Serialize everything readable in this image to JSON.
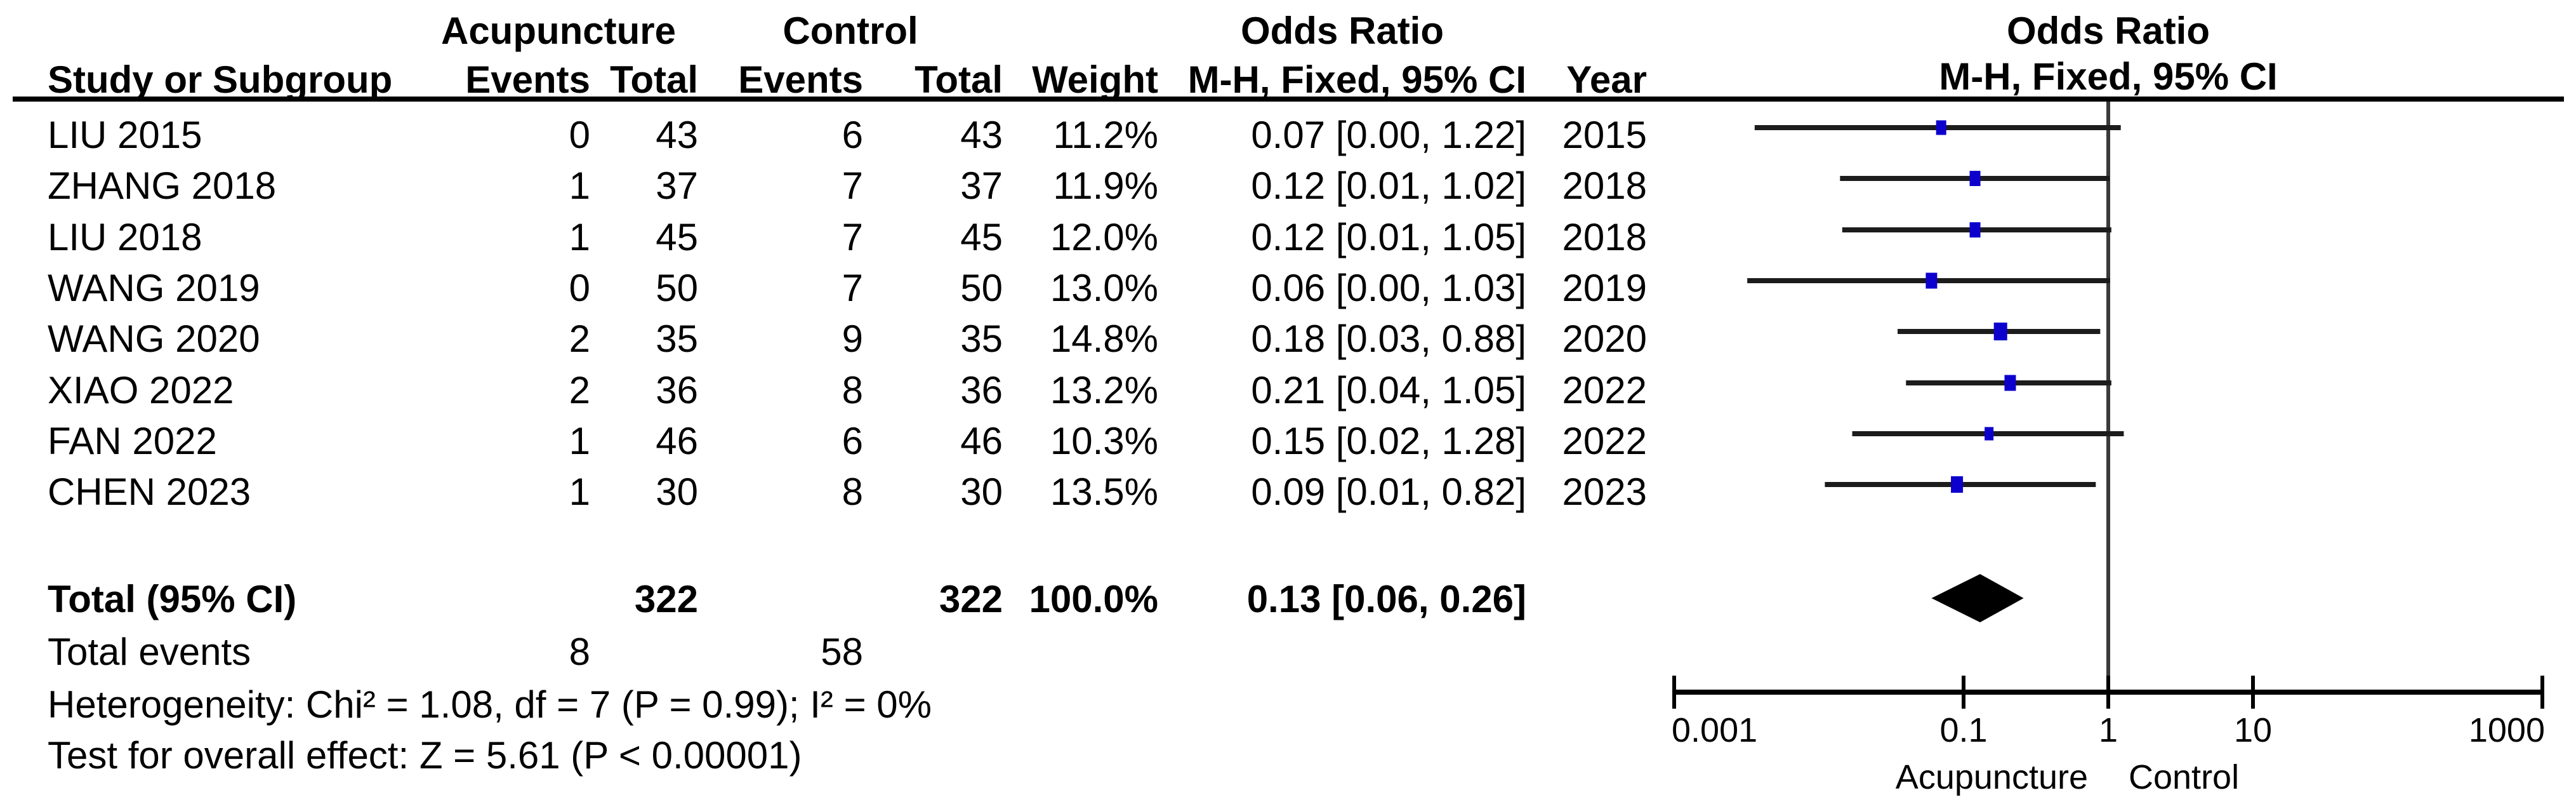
{
  "header": {
    "col_study": "Study or Subgroup",
    "group_experimental": "Acupuncture",
    "group_control": "Control",
    "group_odds_ratio_text": "Odds Ratio",
    "group_odds_ratio_plot": "Odds Ratio",
    "col_events": "Events",
    "col_total": "Total",
    "col_events2": "Events",
    "col_total2": "Total",
    "col_weight": "Weight",
    "col_mh": "M-H, Fixed, 95% CI",
    "col_year": "Year",
    "plot_subtitle": "M-H, Fixed, 95% CI"
  },
  "chart_data": {
    "type": "scatter",
    "subtype": "forest-plot-odds-ratio",
    "effect_measure": "Odds Ratio, M-H, Fixed, 95% CI",
    "x_axis": {
      "scale": "log10",
      "range": [
        0.001,
        1000
      ],
      "ticks": [
        0.001,
        0.1,
        1,
        10,
        1000
      ],
      "tick_labels": [
        "0.001",
        "0.1",
        "1",
        "10",
        "1000"
      ],
      "null_line": 1
    },
    "favours": {
      "left": "Acupuncture",
      "right": "Control"
    },
    "studies": [
      {
        "name": "LIU 2015",
        "acu_events": "0",
        "acu_total": "43",
        "ctrl_events": "6",
        "ctrl_total": "43",
        "weight": "11.2%",
        "weight_value": 11.2,
        "ci_text": "0.07 [0.00, 1.22]",
        "year": "2015",
        "or": 0.07,
        "ci_low": 0.0036,
        "ci_high": 1.22
      },
      {
        "name": "ZHANG 2018",
        "acu_events": "1",
        "acu_total": "37",
        "ctrl_events": "7",
        "ctrl_total": "37",
        "weight": "11.9%",
        "weight_value": 11.9,
        "ci_text": "0.12 [0.01, 1.02]",
        "year": "2018",
        "or": 0.12,
        "ci_low": 0.014,
        "ci_high": 1.02
      },
      {
        "name": "LIU 2018",
        "acu_events": "1",
        "acu_total": "45",
        "ctrl_events": "7",
        "ctrl_total": "45",
        "weight": "12.0%",
        "weight_value": 12.0,
        "ci_text": "0.12 [0.01, 1.05]",
        "year": "2018",
        "or": 0.12,
        "ci_low": 0.0145,
        "ci_high": 1.05
      },
      {
        "name": "WANG 2019",
        "acu_events": "0",
        "acu_total": "50",
        "ctrl_events": "7",
        "ctrl_total": "50",
        "weight": "13.0%",
        "weight_value": 13.0,
        "ci_text": "0.06 [0.00, 1.03]",
        "year": "2019",
        "or": 0.06,
        "ci_low": 0.0032,
        "ci_high": 1.03
      },
      {
        "name": "WANG 2020",
        "acu_events": "2",
        "acu_total": "35",
        "ctrl_events": "9",
        "ctrl_total": "35",
        "weight": "14.8%",
        "weight_value": 14.8,
        "ci_text": "0.18 [0.03, 0.88]",
        "year": "2020",
        "or": 0.18,
        "ci_low": 0.035,
        "ci_high": 0.88
      },
      {
        "name": "XIAO 2022",
        "acu_events": "2",
        "acu_total": "36",
        "ctrl_events": "8",
        "ctrl_total": "36",
        "weight": "13.2%",
        "weight_value": 13.2,
        "ci_text": "0.21 [0.04, 1.05]",
        "year": "2022",
        "or": 0.21,
        "ci_low": 0.04,
        "ci_high": 1.05
      },
      {
        "name": "FAN 2022",
        "acu_events": "1",
        "acu_total": "46",
        "ctrl_events": "6",
        "ctrl_total": "46",
        "weight": "10.3%",
        "weight_value": 10.3,
        "ci_text": "0.15 [0.02, 1.28]",
        "year": "2022",
        "or": 0.15,
        "ci_low": 0.017,
        "ci_high": 1.28
      },
      {
        "name": "CHEN 2023",
        "acu_events": "1",
        "acu_total": "30",
        "ctrl_events": "8",
        "ctrl_total": "30",
        "weight": "13.5%",
        "weight_value": 13.5,
        "ci_text": "0.09 [0.01, 0.82]",
        "year": "2023",
        "or": 0.09,
        "ci_low": 0.011,
        "ci_high": 0.82
      }
    ],
    "total": {
      "label": "Total (95% CI)",
      "acu_total": "322",
      "ctrl_total": "322",
      "weight": "100.0%",
      "ci_text": "0.13 [0.06, 0.26]",
      "or": 0.13,
      "ci_low": 0.06,
      "ci_high": 0.26
    },
    "total_events": {
      "label": "Total events",
      "acu": "8",
      "ctrl": "58"
    },
    "footer": {
      "heterogeneity": "Heterogeneity: Chi² = 1.08, df = 7 (P = 0.99); I² = 0%",
      "overall_effect": "Test for overall effect: Z = 5.61 (P < 0.00001)"
    },
    "colors": {
      "square": "#0d00cc",
      "diamond": "#000000",
      "ci_line": "#1c1c1c",
      "axis": "#000000",
      "null_line": "#3a3a3a"
    }
  }
}
